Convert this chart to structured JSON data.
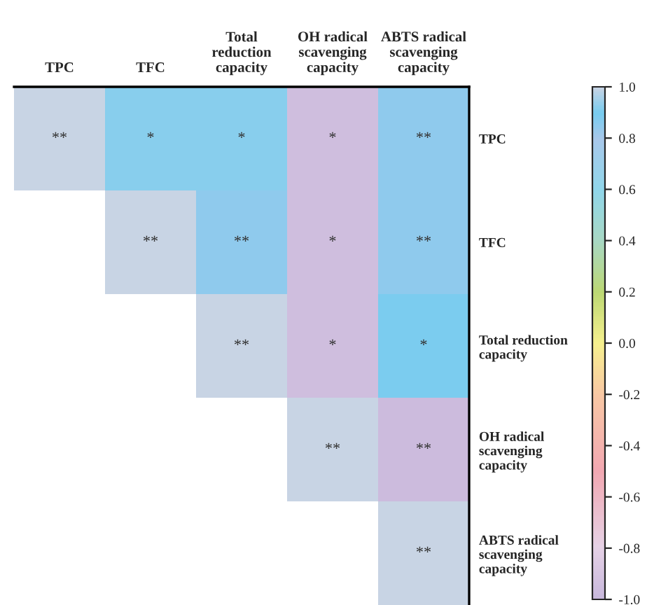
{
  "chart_data": {
    "type": "heatmap",
    "categories": [
      "TPC",
      "TFC",
      "Total\nreduction\ncapacity",
      "OH radical\nscavenging\ncapacity",
      "ABTS radical\nscavenging\ncapacity"
    ],
    "y_categories": [
      "TPC",
      "TFC",
      "Total reduction\ncapacity",
      "OH radical\nscavenging\ncapacity",
      "ABTS radical\nscavenging\ncapacity"
    ],
    "cells": [
      [
        1.0,
        0.92,
        0.92,
        -0.95,
        0.85
      ],
      [
        null,
        1.0,
        0.85,
        -0.95,
        0.85
      ],
      [
        null,
        null,
        1.0,
        -0.95,
        0.9
      ],
      [
        null,
        null,
        null,
        1.0,
        -0.97
      ],
      [
        null,
        null,
        null,
        null,
        1.0
      ]
    ],
    "cell_labels": [
      [
        "**",
        "*",
        "*",
        "*",
        "**"
      ],
      [
        null,
        "**",
        "**",
        "*",
        "**"
      ],
      [
        null,
        null,
        "**",
        "*",
        "*"
      ],
      [
        null,
        null,
        null,
        "**",
        "**"
      ],
      [
        null,
        null,
        null,
        null,
        "**"
      ]
    ],
    "clim": [
      -1.0,
      1.0
    ],
    "cticks": [
      {
        "value": 1.0,
        "label": "1.0"
      },
      {
        "value": 0.8,
        "label": "0.8"
      },
      {
        "value": 0.6,
        "label": "0.6"
      },
      {
        "value": 0.4,
        "label": "0.4"
      },
      {
        "value": 0.2,
        "label": "0.2"
      },
      {
        "value": 0.0,
        "label": "0.0"
      },
      {
        "value": -0.2,
        "label": "-0.2"
      },
      {
        "value": -0.4,
        "label": "-0.4"
      },
      {
        "value": -0.6,
        "label": "-0.6"
      },
      {
        "value": -0.8,
        "label": "-0.8"
      },
      {
        "value": -1.0,
        "label": "-1.0"
      }
    ]
  }
}
